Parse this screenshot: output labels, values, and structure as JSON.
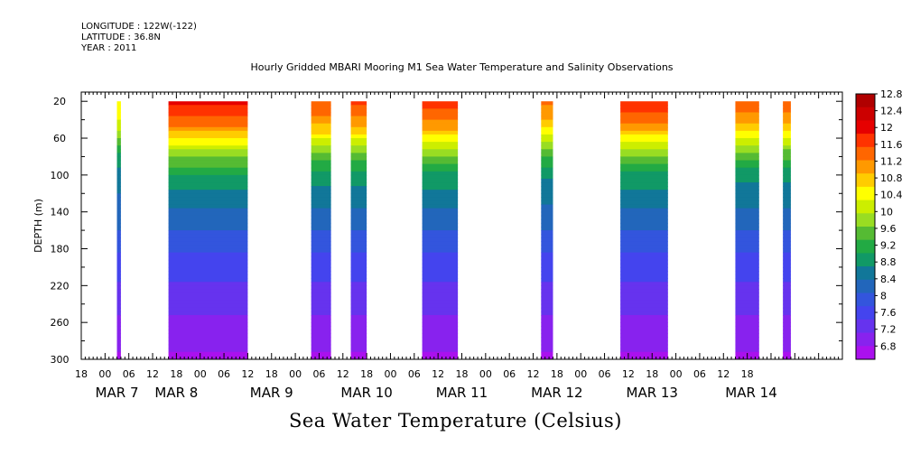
{
  "header": {
    "longitude": "LONGITUDE : 122W(-122)",
    "latitude": "LATITUDE : 36.8N",
    "year": "YEAR : 2011"
  },
  "chart_data": {
    "type": "heatmap",
    "title": "Hourly Gridded MBARI Mooring M1 Sea Water Temperature and Salinity Observations",
    "colorbar_title": "Sea Water Temperature (Celsius)",
    "ylabel": "DEPTH (m)",
    "ylim": [
      300,
      10
    ],
    "y_ticks": [
      20,
      60,
      100,
      140,
      180,
      220,
      260,
      300
    ],
    "x_range_hours": [
      -6,
      186
    ],
    "x_tick_labels": [
      "18",
      "00",
      "06",
      "12",
      "18",
      "00",
      "06",
      "12",
      "18",
      "00",
      "06",
      "12",
      "18",
      "00",
      "06",
      "12",
      "18",
      "00",
      "06",
      "12",
      "18",
      "00",
      "06",
      "12",
      "18",
      "00",
      "06",
      "12",
      "18"
    ],
    "x_day_labels": [
      "MAR  7",
      "MAR  8",
      "MAR  9",
      "MAR 10",
      "MAR 11",
      "MAR 12",
      "MAR 13",
      "MAR 14"
    ],
    "colorbar_levels": [
      "12.8",
      "12.4",
      "12",
      "11.6",
      "11.2",
      "10.8",
      "10.4",
      "10",
      "9.6",
      "9.2",
      "8.8",
      "8.4",
      "8",
      "7.6",
      "7.2",
      "6.8"
    ],
    "colorbar_range": [
      6.8,
      12.8
    ],
    "colorbar_colors": [
      "#b00000",
      "#cc0000",
      "#e60000",
      "#ff3300",
      "#ff6600",
      "#ff9900",
      "#ffcc00",
      "#ffff00",
      "#ccee00",
      "#99dd22",
      "#55bb33",
      "#22aa44",
      "#119966",
      "#117799",
      "#2266bb",
      "#3355dd",
      "#4444ee",
      "#6633ee",
      "#8822ee",
      "#aa11ee"
    ],
    "profile_depths": [
      20,
      35,
      50,
      65,
      80,
      100,
      120,
      140,
      160,
      180,
      200,
      220,
      240,
      260,
      280,
      300
    ],
    "profile_temps": [
      11.75,
      11.45,
      11.0,
      10.3,
      9.7,
      9.1,
      8.8,
      8.55,
      8.3,
      8.05,
      7.85,
      7.65,
      7.5,
      7.35,
      7.2,
      7.05
    ],
    "segments": [
      {
        "start_hour": 3,
        "end_hour": 4,
        "surface_offset": -1.1,
        "top_depth": 20
      },
      {
        "start_hour": 16,
        "end_hour": 36,
        "surface_offset": 0.25,
        "top_depth": 20
      },
      {
        "start_hour": 52,
        "end_hour": 57,
        "surface_offset": -0.15,
        "top_depth": 20
      },
      {
        "start_hour": 62,
        "end_hour": 66,
        "surface_offset": -0.1,
        "top_depth": 20
      },
      {
        "start_hour": 80,
        "end_hour": 89,
        "surface_offset": 0.05,
        "top_depth": 20
      },
      {
        "start_hour": 110,
        "end_hour": 113,
        "surface_offset": -0.4,
        "top_depth": 20
      },
      {
        "start_hour": 130,
        "end_hour": 142,
        "surface_offset": 0.1,
        "top_depth": 20
      },
      {
        "start_hour": 159,
        "end_hour": 165,
        "surface_offset": -0.2,
        "top_depth": 20
      },
      {
        "start_hour": 171,
        "end_hour": 173,
        "surface_offset": -0.25,
        "top_depth": 20
      }
    ]
  }
}
